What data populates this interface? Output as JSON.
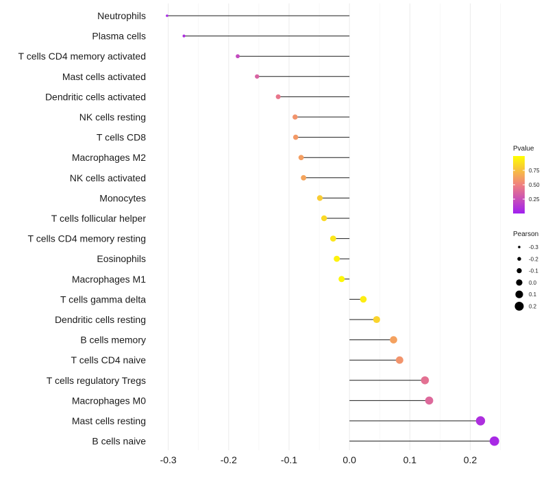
{
  "chart_data": {
    "type": "lollipop",
    "categories": [
      "Neutrophils",
      "Plasma cells",
      "T cells CD4 memory activated",
      "Mast cells activated",
      "Dendritic cells activated",
      "NK cells resting",
      "T cells CD8",
      "Macrophages M2",
      "NK cells activated",
      "Monocytes",
      "T cells follicular helper",
      "T cells CD4 memory resting",
      "Eosinophils",
      "Macrophages M1",
      "T cells gamma delta",
      "Dendritic cells resting",
      "B cells memory",
      "T cells CD4 naive",
      "T cells regulatory  Tregs",
      "Macrophages M0",
      "Mast cells resting",
      "B cells naive"
    ],
    "pearson": [
      -0.302,
      -0.274,
      -0.185,
      -0.153,
      -0.118,
      -0.09,
      -0.089,
      -0.08,
      -0.076,
      -0.049,
      -0.042,
      -0.027,
      -0.021,
      -0.013,
      0.023,
      0.045,
      0.073,
      0.083,
      0.125,
      0.132,
      0.217,
      0.24
    ],
    "pvalue": [
      0.05,
      0.08,
      0.22,
      0.35,
      0.45,
      0.58,
      0.6,
      0.62,
      0.64,
      0.8,
      0.85,
      0.9,
      0.95,
      0.97,
      0.93,
      0.83,
      0.63,
      0.58,
      0.42,
      0.38,
      0.08,
      0.05
    ],
    "xlim": [
      -0.32,
      0.255
    ],
    "xticks": [
      -0.3,
      -0.2,
      -0.1,
      0.0,
      0.1,
      0.2
    ],
    "xtick_labels": [
      "-0.3",
      "-0.2",
      "-0.1",
      "0.0",
      "0.1",
      "0.2"
    ],
    "baseline": 0.0,
    "xlabel": "",
    "ylabel": "",
    "grid": true,
    "color_legend": {
      "title": "Pvalue",
      "ticks": [
        0.25,
        0.5,
        0.75
      ],
      "tick_labels": [
        "0.25",
        "0.50",
        "0.75"
      ],
      "range": [
        0.0,
        1.0
      ],
      "low_color": "#a020f0",
      "mid_color": "#f08080",
      "high_color": "#ffff00"
    },
    "size_legend": {
      "title": "Pearson",
      "values": [
        -0.3,
        -0.2,
        -0.1,
        0.0,
        0.1,
        0.2
      ],
      "labels": [
        "-0.3",
        "-0.2",
        "-0.1",
        "0.0",
        "0.1",
        "0.2"
      ],
      "color": "#000000"
    }
  }
}
